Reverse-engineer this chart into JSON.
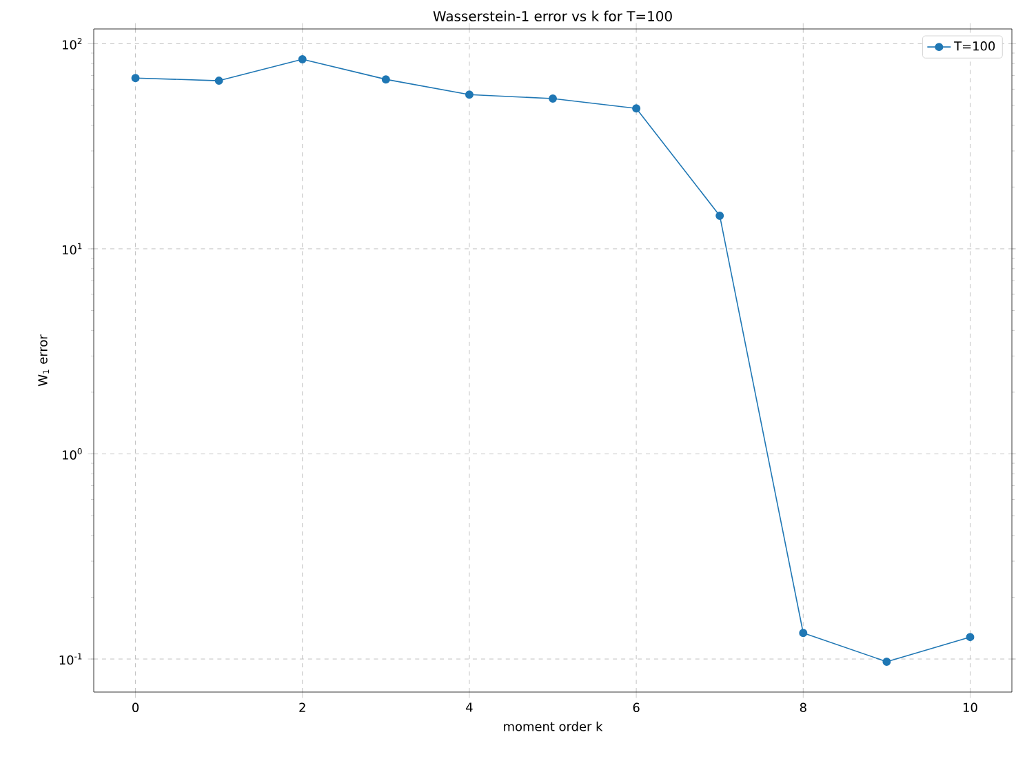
{
  "chart_data": {
    "type": "line",
    "title": "Wasserstein-1 error vs k for T=100",
    "xlabel": "moment order k",
    "ylabel": "W$_{1}$ error",
    "x": [
      0,
      1,
      2,
      3,
      4,
      5,
      6,
      7,
      8,
      9,
      10
    ],
    "series": [
      {
        "name": "T=100",
        "color": "#1f77b4",
        "values": [
          68,
          66,
          84,
          67,
          56.5,
          54,
          48.4,
          14.5,
          0.134,
          0.097,
          0.128
        ]
      }
    ],
    "xlim": [
      -0.5,
      10.5
    ],
    "xticks": [
      0,
      2,
      4,
      6,
      8,
      10
    ],
    "ylim": [
      0.069,
      118
    ],
    "yticks": [
      {
        "value": 0.1,
        "label": "10$^{-1}$"
      },
      {
        "value": 1,
        "label": "10$^{0}$"
      },
      {
        "value": 10,
        "label": "10$^{1}$"
      },
      {
        "value": 100,
        "label": "10$^{2}$"
      }
    ],
    "log": "y",
    "grid": true,
    "legend": "top right",
    "marker": "circle",
    "line_style": "solid"
  }
}
